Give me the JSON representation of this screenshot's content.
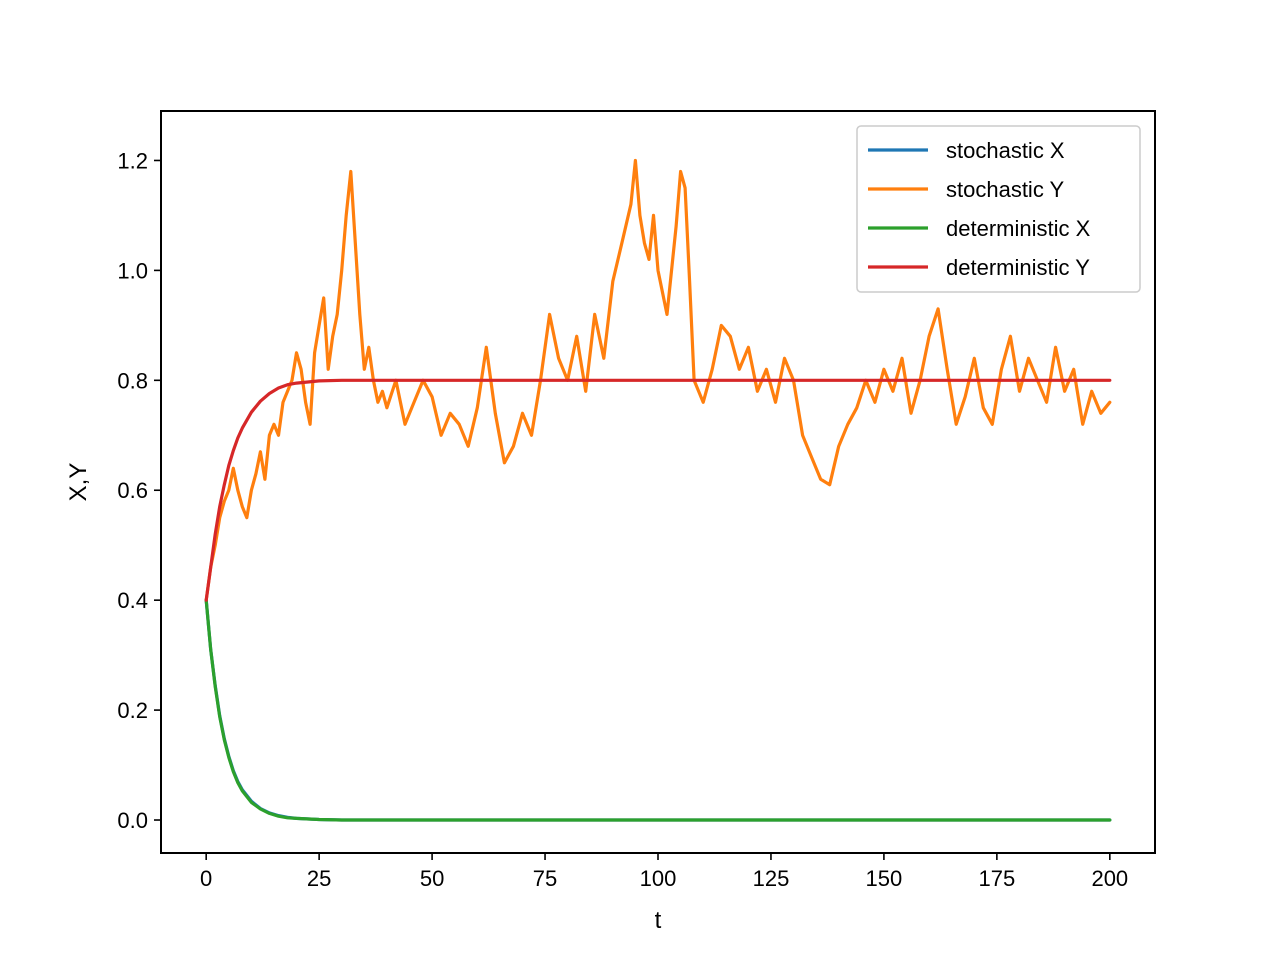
{
  "chart_data": {
    "type": "line",
    "title": "",
    "xlabel": "t",
    "ylabel": "X,Y",
    "xlim": [
      -10,
      210
    ],
    "ylim": [
      -0.06,
      1.29
    ],
    "xticks": [
      0,
      25,
      50,
      75,
      100,
      125,
      150,
      175,
      200
    ],
    "xtick_labels": [
      "0",
      "25",
      "50",
      "75",
      "100",
      "125",
      "150",
      "175",
      "200"
    ],
    "yticks": [
      0.0,
      0.2,
      0.4,
      0.6,
      0.8,
      1.0,
      1.2
    ],
    "ytick_labels": [
      "0.0",
      "0.2",
      "0.4",
      "0.6",
      "0.8",
      "1.0",
      "1.2"
    ],
    "grid": false,
    "legend_position": "top-right",
    "series": [
      {
        "name": "stochastic X",
        "color": "#1f77b4",
        "x": [
          0,
          1,
          2,
          3,
          4,
          5,
          6,
          7,
          8,
          10,
          12,
          14,
          16,
          18,
          20,
          25,
          30,
          40,
          60,
          100,
          150,
          200
        ],
        "y": [
          0.4,
          0.31,
          0.245,
          0.19,
          0.148,
          0.116,
          0.09,
          0.07,
          0.055,
          0.034,
          0.021,
          0.013,
          0.008,
          0.005,
          0.003,
          0.001,
          0.0,
          0.0,
          0.0,
          0.0,
          0.0,
          0.0
        ]
      },
      {
        "name": "stochastic Y",
        "color": "#ff7f0e",
        "x": [
          0,
          1,
          2,
          3,
          4,
          5,
          6,
          7,
          8,
          9,
          10,
          11,
          12,
          13,
          14,
          15,
          16,
          17,
          18,
          19,
          20,
          21,
          22,
          23,
          24,
          25,
          26,
          27,
          28,
          29,
          30,
          31,
          32,
          33,
          34,
          35,
          36,
          37,
          38,
          39,
          40,
          42,
          44,
          46,
          48,
          50,
          52,
          54,
          56,
          58,
          60,
          62,
          64,
          66,
          68,
          70,
          72,
          74,
          76,
          78,
          80,
          82,
          84,
          86,
          88,
          90,
          92,
          94,
          95,
          96,
          97,
          98,
          99,
          100,
          102,
          104,
          105,
          106,
          107,
          108,
          110,
          112,
          114,
          116,
          118,
          120,
          122,
          124,
          126,
          128,
          130,
          132,
          134,
          136,
          138,
          140,
          142,
          144,
          146,
          148,
          150,
          152,
          154,
          156,
          158,
          160,
          162,
          164,
          166,
          168,
          170,
          172,
          174,
          176,
          178,
          180,
          182,
          184,
          186,
          188,
          190,
          192,
          194,
          196,
          198,
          200
        ],
        "y": [
          0.4,
          0.46,
          0.5,
          0.55,
          0.58,
          0.6,
          0.64,
          0.6,
          0.57,
          0.55,
          0.6,
          0.63,
          0.67,
          0.62,
          0.7,
          0.72,
          0.7,
          0.76,
          0.78,
          0.8,
          0.85,
          0.82,
          0.76,
          0.72,
          0.85,
          0.9,
          0.95,
          0.82,
          0.88,
          0.92,
          1.0,
          1.1,
          1.18,
          1.05,
          0.92,
          0.82,
          0.86,
          0.8,
          0.76,
          0.78,
          0.75,
          0.8,
          0.72,
          0.76,
          0.8,
          0.77,
          0.7,
          0.74,
          0.72,
          0.68,
          0.75,
          0.86,
          0.74,
          0.65,
          0.68,
          0.74,
          0.7,
          0.8,
          0.92,
          0.84,
          0.8,
          0.88,
          0.78,
          0.92,
          0.84,
          0.98,
          1.05,
          1.12,
          1.2,
          1.1,
          1.05,
          1.02,
          1.1,
          1.0,
          0.92,
          1.08,
          1.18,
          1.15,
          0.98,
          0.8,
          0.76,
          0.82,
          0.9,
          0.88,
          0.82,
          0.86,
          0.78,
          0.82,
          0.76,
          0.84,
          0.8,
          0.7,
          0.66,
          0.62,
          0.61,
          0.68,
          0.72,
          0.75,
          0.8,
          0.76,
          0.82,
          0.78,
          0.84,
          0.74,
          0.8,
          0.88,
          0.93,
          0.82,
          0.72,
          0.77,
          0.84,
          0.75,
          0.72,
          0.82,
          0.88,
          0.78,
          0.84,
          0.8,
          0.76,
          0.86,
          0.78,
          0.82,
          0.72,
          0.78,
          0.74,
          0.76
        ]
      },
      {
        "name": "deterministic X",
        "color": "#2ca02c",
        "x": [
          0,
          1,
          2,
          3,
          4,
          5,
          6,
          7,
          8,
          10,
          12,
          14,
          16,
          18,
          20,
          25,
          30,
          40,
          60,
          100,
          150,
          200
        ],
        "y": [
          0.4,
          0.31,
          0.243,
          0.188,
          0.146,
          0.114,
          0.088,
          0.068,
          0.053,
          0.032,
          0.02,
          0.012,
          0.007,
          0.004,
          0.003,
          0.001,
          0.0,
          0.0,
          0.0,
          0.0,
          0.0,
          0.0
        ]
      },
      {
        "name": "deterministic Y",
        "color": "#d62728",
        "x": [
          0,
          1,
          2,
          3,
          4,
          5,
          6,
          7,
          8,
          10,
          12,
          14,
          16,
          18,
          20,
          25,
          30,
          40,
          60,
          100,
          150,
          200
        ],
        "y": [
          0.4,
          0.46,
          0.52,
          0.57,
          0.61,
          0.645,
          0.672,
          0.695,
          0.713,
          0.742,
          0.762,
          0.776,
          0.786,
          0.792,
          0.795,
          0.799,
          0.8,
          0.8,
          0.8,
          0.8,
          0.8,
          0.8
        ]
      }
    ]
  }
}
